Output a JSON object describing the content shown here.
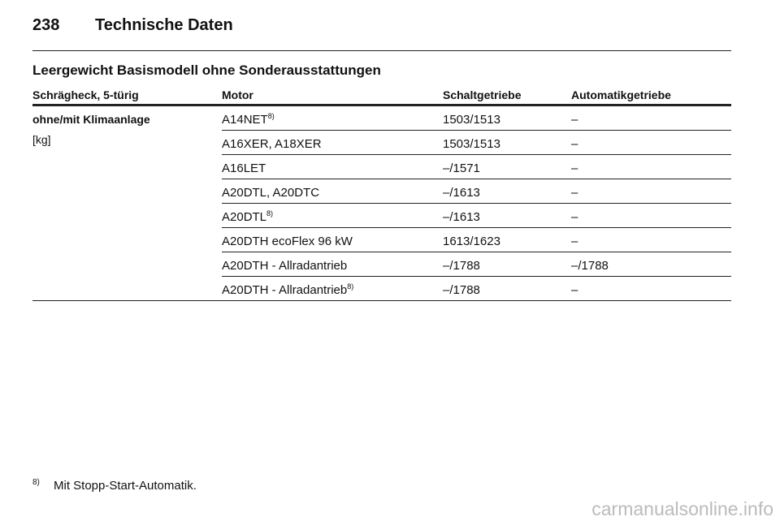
{
  "header": {
    "page_number": "238",
    "title": "Technische Daten"
  },
  "section_title": "Leergewicht Basismodell ohne Sonderausstattungen",
  "table": {
    "columns": [
      "Schrägheck, 5-türig",
      "Motor",
      "Schaltgetriebe",
      "Automatikgetriebe"
    ],
    "row_label": {
      "title": "ohne/mit Klimaanlage",
      "unit": "[kg]"
    },
    "rows": [
      {
        "motor": "A14NET",
        "ref": "8)",
        "manual": "1503/1513",
        "automatic": "–"
      },
      {
        "motor": "A16XER, A18XER",
        "manual": "1503/1513",
        "automatic": "–"
      },
      {
        "motor": "A16LET",
        "manual": "–/1571",
        "automatic": "–"
      },
      {
        "motor": "A20DTL, A20DTC",
        "manual": "–/1613",
        "automatic": "–"
      },
      {
        "motor": "A20DTL",
        "ref": "8)",
        "manual": "–/1613",
        "automatic": "–"
      },
      {
        "motor": "A20DTH ecoFlex 96 kW",
        "manual": "1613/1623",
        "automatic": "–"
      },
      {
        "motor": "A20DTH - Allradantrieb",
        "manual": "–/1788",
        "automatic": "–/1788"
      },
      {
        "motor": "A20DTH - Allradantrieb",
        "ref": "8)",
        "manual": "–/1788",
        "automatic": "–"
      }
    ]
  },
  "footnote": {
    "mark": "8)",
    "text": "Mit Stopp-Start-Automatik."
  },
  "watermark": "carmanualsonline.info"
}
